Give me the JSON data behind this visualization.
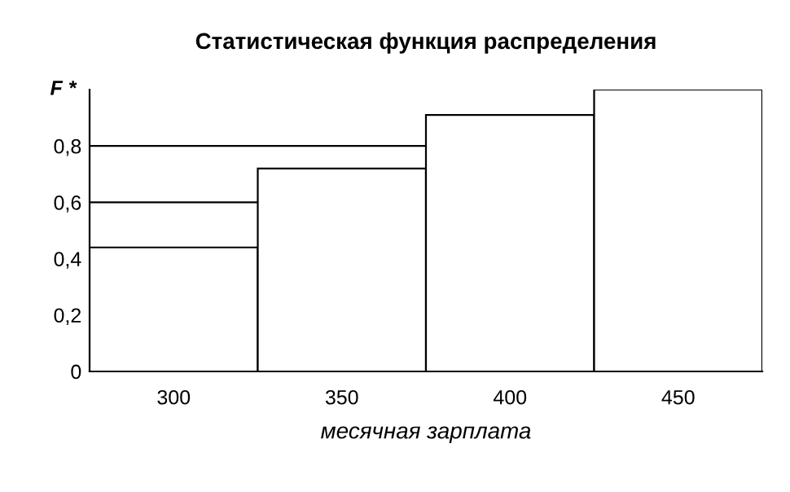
{
  "chart_data": {
    "type": "bar",
    "title": "Статистическая функция распределения",
    "xlabel": "месячная зарплата",
    "ylabel": "F *",
    "categories": [
      "300",
      "350",
      "400",
      "450"
    ],
    "values": [
      0.44,
      0.72,
      0.91,
      1.0
    ],
    "color": "#ffffff",
    "ylim": [
      0,
      1
    ],
    "yticks": [
      0,
      {
        "value": 0.2,
        "label": "0,2"
      },
      {
        "value": 0.4,
        "label": "0,4"
      },
      {
        "value": 0.6,
        "label": "0,6"
      },
      {
        "value": 0.8,
        "label": "0,8"
      }
    ],
    "grid": "y"
  }
}
